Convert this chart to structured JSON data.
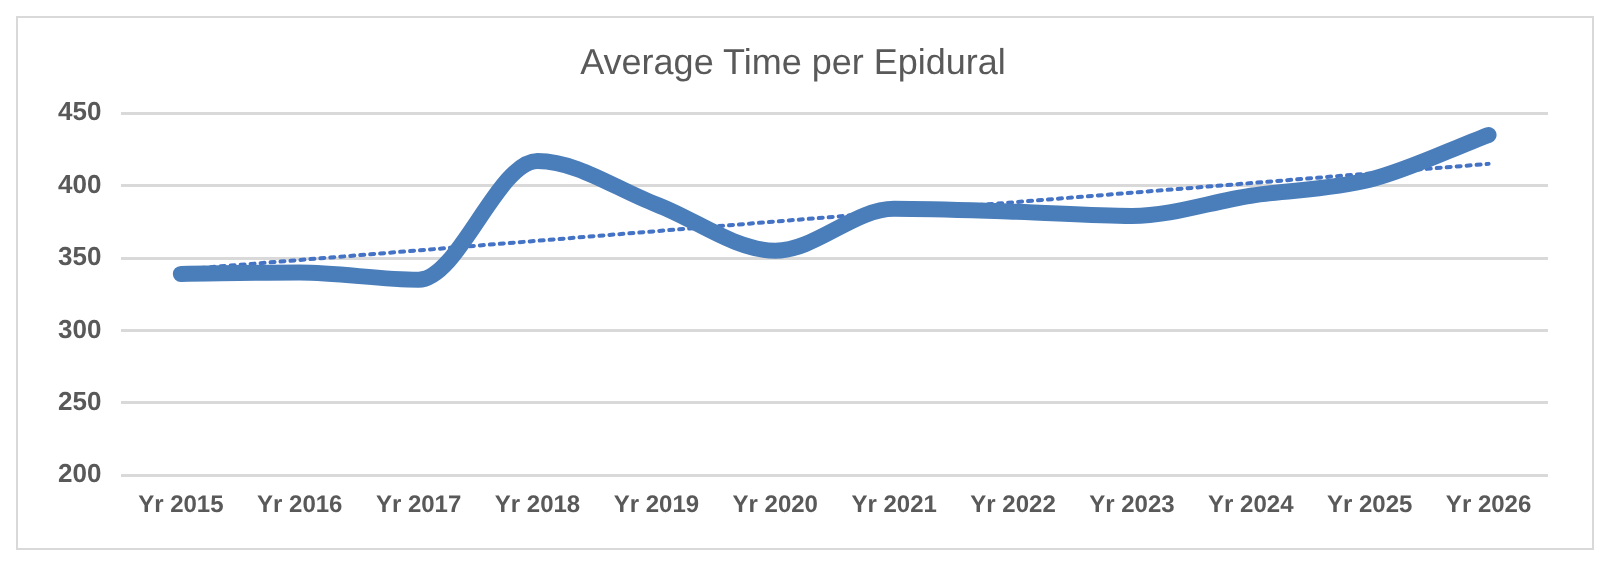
{
  "chart_data": {
    "type": "line",
    "title": "Average Time per Epidural",
    "categories": [
      "Yr 2015",
      "Yr 2016",
      "Yr 2017",
      "Yr 2018",
      "Yr 2019",
      "Yr 2020",
      "Yr 2021",
      "Yr 2022",
      "Yr 2023",
      "Yr 2024",
      "Yr 2025",
      "Yr 2026"
    ],
    "series": [
      {
        "color": "#4a7ebb",
        "values": [
          339,
          340,
          335,
          417,
          387,
          355,
          384,
          382,
          379,
          393,
          404,
          435
        ]
      },
      {
        "type": "line",
        "color": "#4472c4",
        "line_style": "dotted",
        "x": [
          "Yr 2015",
          "Yr 2026"
        ],
        "values": [
          342,
          415
        ]
      }
    ],
    "ylim": [
      200,
      450
    ],
    "yticks": [
      200,
      250,
      300,
      350,
      400,
      450
    ],
    "grid": "y",
    "legend": false,
    "marker": "none"
  }
}
